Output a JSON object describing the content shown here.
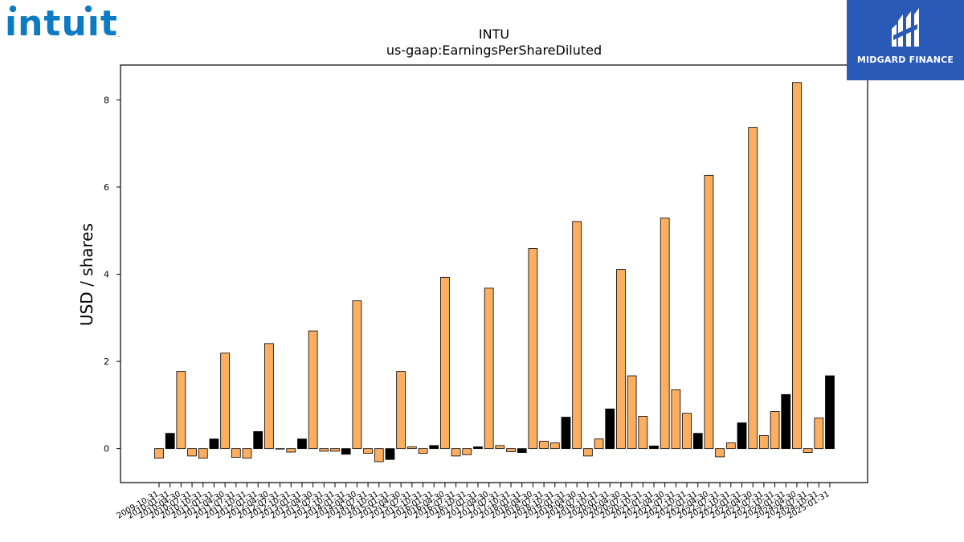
{
  "logos": {
    "left_brand": "intuit",
    "right_brand": "MIDGARD FINANCE"
  },
  "chart_data": {
    "type": "bar",
    "title": "INTU",
    "subtitle": "us-gaap:EarningsPerShareDiluted",
    "xlabel": "",
    "ylabel": "USD / shares",
    "ylim": [
      -0.78,
      8.8
    ],
    "yticks": [
      0,
      2,
      4,
      6,
      8
    ],
    "grid": false,
    "legend": "none",
    "colors": {
      "quarterly": "#fdae61",
      "annual": "#000000",
      "edge": "#000000"
    },
    "x_tick_labels": [
      "2009-10-31",
      "2010-01-31",
      "2010-04-30",
      "2010-07-31",
      "2010-10-31",
      "2011-01-31",
      "2011-04-30",
      "2011-07-31",
      "2011-10-31",
      "2012-01-31",
      "2012-04-30",
      "2012-07-31",
      "2012-10-31",
      "2013-01-31",
      "2013-04-30",
      "2013-07-31",
      "2013-10-31",
      "2014-01-31",
      "2014-04-30",
      "2014-07-31",
      "2014-10-31",
      "2015-01-31",
      "2015-04-30",
      "2015-07-31",
      "2015-10-31",
      "2016-01-31",
      "2016-04-30",
      "2016-07-31",
      "2016-10-31",
      "2017-01-31",
      "2017-04-30",
      "2017-07-31",
      "2017-10-31",
      "2018-01-31",
      "2018-04-30",
      "2018-07-31",
      "2018-10-31",
      "2019-01-31",
      "2019-04-30",
      "2019-07-31",
      "2019-10-31",
      "2020-01-31",
      "2020-04-30",
      "2020-07-31",
      "2020-10-31",
      "2021-01-31",
      "2021-04-30",
      "2021-07-31",
      "2021-10-31",
      "2022-01-31",
      "2022-04-30",
      "2022-07-31",
      "2022-10-31",
      "2023-01-31",
      "2023-04-30",
      "2023-07-31",
      "2023-10-31",
      "2024-01-31",
      "2024-04-30",
      "2024-07-31",
      "2024-10-31",
      "2025-01-31"
    ],
    "bars": [
      {
        "value": -0.22,
        "annual": false
      },
      {
        "value": 0.35,
        "annual": true
      },
      {
        "value": 1.77,
        "annual": false
      },
      {
        "value": -0.17,
        "annual": false
      },
      {
        "value": -0.22,
        "annual": false
      },
      {
        "value": 0.22,
        "annual": true
      },
      {
        "value": 2.19,
        "annual": false
      },
      {
        "value": -0.2,
        "annual": false
      },
      {
        "value": -0.22,
        "annual": false
      },
      {
        "value": 0.39,
        "annual": true
      },
      {
        "value": 2.41,
        "annual": false
      },
      {
        "value": -0.01,
        "annual": true
      },
      {
        "value": -0.08,
        "annual": false
      },
      {
        "value": 0.22,
        "annual": true
      },
      {
        "value": 2.7,
        "annual": false
      },
      {
        "value": -0.06,
        "annual": false
      },
      {
        "value": -0.06,
        "annual": false
      },
      {
        "value": -0.13,
        "annual": true
      },
      {
        "value": 3.39,
        "annual": false
      },
      {
        "value": -0.11,
        "annual": false
      },
      {
        "value": -0.3,
        "annual": false
      },
      {
        "value": -0.25,
        "annual": true
      },
      {
        "value": 1.77,
        "annual": false
      },
      {
        "value": 0.04,
        "annual": false
      },
      {
        "value": -0.11,
        "annual": false
      },
      {
        "value": 0.07,
        "annual": true
      },
      {
        "value": 3.93,
        "annual": false
      },
      {
        "value": -0.17,
        "annual": false
      },
      {
        "value": -0.14,
        "annual": false
      },
      {
        "value": 0.04,
        "annual": true
      },
      {
        "value": 3.68,
        "annual": false
      },
      {
        "value": 0.07,
        "annual": false
      },
      {
        "value": -0.07,
        "annual": false
      },
      {
        "value": -0.09,
        "annual": true
      },
      {
        "value": 4.59,
        "annual": false
      },
      {
        "value": 0.17,
        "annual": false
      },
      {
        "value": 0.13,
        "annual": false
      },
      {
        "value": 0.72,
        "annual": true
      },
      {
        "value": 5.21,
        "annual": false
      },
      {
        "value": -0.17,
        "annual": false
      },
      {
        "value": 0.22,
        "annual": false
      },
      {
        "value": 0.91,
        "annual": true
      },
      {
        "value": 4.11,
        "annual": false
      },
      {
        "value": 1.67,
        "annual": false
      },
      {
        "value": 0.74,
        "annual": false
      },
      {
        "value": 0.06,
        "annual": true
      },
      {
        "value": 5.29,
        "annual": false
      },
      {
        "value": 1.35,
        "annual": false
      },
      {
        "value": 0.81,
        "annual": false
      },
      {
        "value": 0.35,
        "annual": true
      },
      {
        "value": 6.27,
        "annual": false
      },
      {
        "value": -0.19,
        "annual": false
      },
      {
        "value": 0.13,
        "annual": false
      },
      {
        "value": 0.59,
        "annual": true
      },
      {
        "value": 7.37,
        "annual": false
      },
      {
        "value": 0.3,
        "annual": false
      },
      {
        "value": 0.85,
        "annual": false
      },
      {
        "value": 1.24,
        "annual": true
      },
      {
        "value": 8.4,
        "annual": false
      },
      {
        "value": -0.09,
        "annual": false
      },
      {
        "value": 0.7,
        "annual": false
      },
      {
        "value": 1.67,
        "annual": true
      }
    ]
  }
}
